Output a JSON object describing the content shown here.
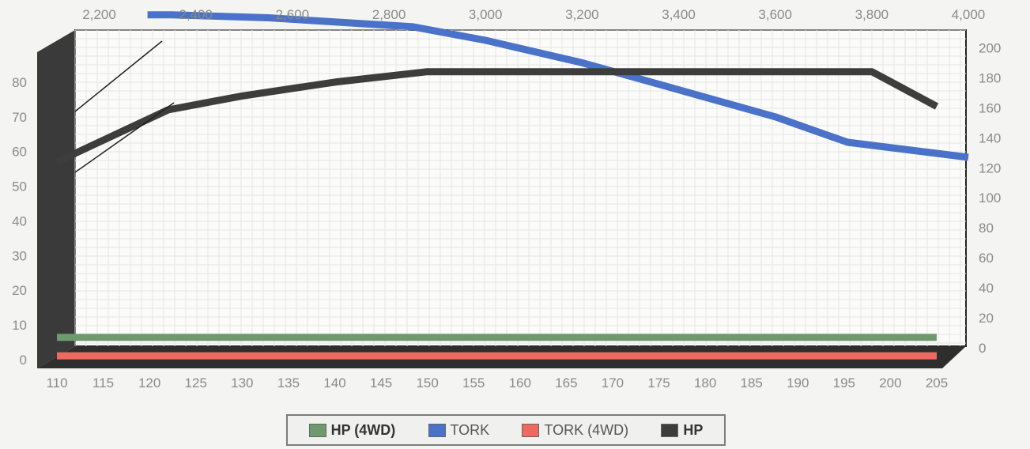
{
  "chart_data": {
    "type": "line",
    "x_bottom": {
      "ticks": [
        "110",
        "115",
        "120",
        "125",
        "130",
        "135",
        "140",
        "145",
        "150",
        "155",
        "160",
        "165",
        "170",
        "175",
        "180",
        "185",
        "190",
        "195",
        "200",
        "205"
      ]
    },
    "x_top": {
      "ticks": [
        "2,200",
        "2,400",
        "2,600",
        "2,800",
        "3,000",
        "3,200",
        "3,400",
        "3,600",
        "3,800",
        "4,000"
      ],
      "range": [
        2150,
        4000
      ]
    },
    "y_left": {
      "ticks": [
        "0",
        "10",
        "20",
        "30",
        "40",
        "50",
        "60",
        "70",
        "80"
      ],
      "range": [
        0,
        90
      ]
    },
    "y_right": {
      "ticks": [
        "0",
        "20",
        "40",
        "60",
        "80",
        "100",
        "120",
        "140",
        "160",
        "180",
        "200"
      ],
      "range": [
        0,
        215
      ]
    },
    "series": [
      {
        "name": "HP (4WD)",
        "color": "#6f9a6f",
        "axis": "bottom-left",
        "points": [
          [
            110,
            0.5
          ],
          [
            205,
            0.5
          ]
        ]
      },
      {
        "name": "TORK",
        "color": "#4a72c8",
        "axis": "top-right",
        "points": [
          [
            2300,
            222
          ],
          [
            2350,
            222
          ],
          [
            2550,
            220
          ],
          [
            2850,
            214
          ],
          [
            3000,
            205
          ],
          [
            3200,
            190
          ],
          [
            3400,
            172
          ],
          [
            3600,
            154
          ],
          [
            3750,
            137
          ],
          [
            4000,
            127
          ]
        ]
      },
      {
        "name": "TORK (4WD)",
        "color": "#ee6a60",
        "axis": "bottom-left",
        "points": [
          [
            110,
            0.2
          ],
          [
            205,
            0.2
          ]
        ]
      },
      {
        "name": "HP",
        "color": "#3d3d3d",
        "axis": "bottom-left",
        "points": [
          [
            110,
            57
          ],
          [
            122,
            72
          ],
          [
            130,
            76
          ],
          [
            140,
            80
          ],
          [
            150,
            83
          ],
          [
            160,
            83
          ],
          [
            170,
            83
          ],
          [
            180,
            83
          ],
          [
            190,
            83
          ],
          [
            198,
            83
          ],
          [
            205,
            73
          ]
        ]
      }
    ],
    "legend": {
      "placement": "bottom-center"
    },
    "grid": true,
    "title": "",
    "xlabel": "",
    "ylabel": ""
  }
}
